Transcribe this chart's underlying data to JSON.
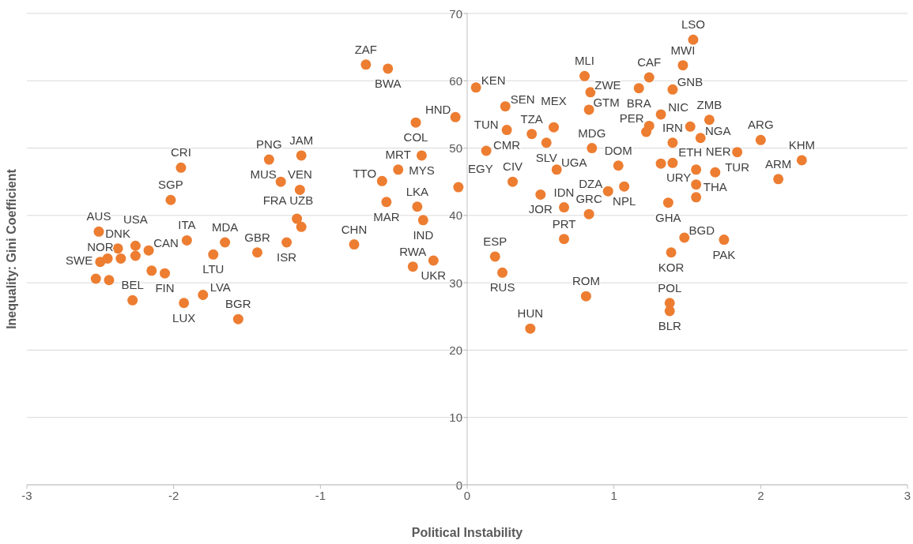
{
  "chart_data": {
    "type": "scatter",
    "xlabel": "Political Instability",
    "ylabel": "Inequality: Gini Coefficient",
    "color": "#ed7d31",
    "marker": "circle",
    "grid": "y",
    "xlim": [
      -3,
      3
    ],
    "xticks": [
      -3,
      -2,
      -1,
      0,
      1,
      2,
      3
    ],
    "ylim": [
      0,
      70
    ],
    "yticks": [
      0,
      10,
      20,
      30,
      40,
      50,
      60,
      70
    ],
    "x": [
      -1.95,
      -2.02,
      -2.51,
      -2.38,
      -2.5,
      -2.45,
      -2.36,
      -2.26,
      -2.26,
      -2.17,
      -1.91,
      -1.65,
      -1.73,
      -1.43,
      -1.23,
      -1.13,
      -1.16,
      -1.14,
      -1.27,
      -1.35,
      -1.13,
      -2.53,
      -2.44,
      -2.15,
      -2.06,
      -2.28,
      -1.93,
      -1.8,
      -1.56,
      -0.69,
      -0.54,
      0.06,
      -0.08,
      -0.35,
      -0.31,
      -0.47,
      -0.58,
      -0.55,
      -0.06,
      -0.34,
      -0.3,
      -0.77,
      -0.23,
      -0.37,
      0.26,
      0.27,
      0.13,
      0.44,
      0.59,
      0.54,
      0.31,
      0.5,
      0.61,
      0.66,
      0.66,
      0.83,
      0.96,
      1.07,
      1.03,
      0.85,
      0.83,
      0.84,
      0.8,
      0.19,
      0.24,
      0.81,
      0.43,
      1.54,
      1.47,
      1.24,
      1.17,
      1.4,
      1.32,
      1.24,
      1.22,
      1.52,
      1.65,
      1.4,
      1.59,
      1.32,
      1.4,
      1.56,
      1.69,
      1.56,
      1.56,
      1.37,
      1.48,
      1.39,
      1.75,
      1.38,
      1.38,
      1.84,
      2.0,
      2.28,
      2.12
    ],
    "values": [
      47.1,
      42.3,
      37.6,
      35.1,
      33.1,
      33.6,
      33.6,
      35.5,
      34.0,
      34.8,
      36.3,
      36.0,
      34.2,
      34.5,
      36.0,
      38.3,
      39.5,
      43.8,
      45.0,
      48.3,
      48.9,
      30.6,
      30.4,
      31.8,
      31.4,
      27.4,
      27.0,
      28.2,
      24.6,
      62.4,
      61.8,
      59.0,
      54.6,
      53.8,
      48.9,
      46.8,
      45.1,
      42.0,
      44.2,
      41.3,
      39.3,
      35.7,
      33.3,
      32.4,
      56.2,
      52.7,
      49.6,
      52.1,
      53.1,
      50.8,
      45.0,
      43.1,
      46.8,
      41.2,
      36.5,
      40.2,
      43.6,
      44.3,
      47.4,
      50.0,
      55.7,
      58.3,
      60.7,
      33.9,
      31.5,
      28.0,
      23.2,
      66.1,
      62.3,
      60.5,
      58.9,
      58.7,
      55.0,
      53.3,
      52.4,
      53.2,
      54.2,
      50.8,
      51.5,
      47.7,
      47.8,
      46.8,
      46.4,
      44.6,
      42.7,
      41.9,
      36.7,
      34.5,
      36.4,
      27.0,
      25.8,
      49.4,
      51.2,
      48.2,
      45.4
    ],
    "annotations": [
      {
        "text": "CRI",
        "x": -1.95,
        "y": 47.1
      },
      {
        "text": "SGP",
        "x": -2.02,
        "y": 42.3
      },
      {
        "text": "AUS",
        "x": -2.51,
        "y": 37.6
      },
      {
        "text": "DNK",
        "x": -2.38,
        "y": 35.1
      },
      {
        "text": "NOR",
        "x": -2.5,
        "y": 33.1
      },
      {
        "text": "SWE",
        "x": -2.45,
        "y": 33.6
      },
      {
        "text": "USA",
        "x": -2.26,
        "y": 35.5
      },
      {
        "text": "CAN",
        "x": -2.17,
        "y": 34.8
      },
      {
        "text": "ITA",
        "x": -1.91,
        "y": 36.3
      },
      {
        "text": "MDA",
        "x": -1.65,
        "y": 36.0
      },
      {
        "text": "LTU",
        "x": -1.73,
        "y": 34.2
      },
      {
        "text": "GBR",
        "x": -1.43,
        "y": 34.5
      },
      {
        "text": "ISR",
        "x": -1.23,
        "y": 36.0
      },
      {
        "text": "UZB",
        "x": -1.13,
        "y": 38.3
      },
      {
        "text": "FRA",
        "x": -1.16,
        "y": 39.5
      },
      {
        "text": "VEN",
        "x": -1.14,
        "y": 43.8
      },
      {
        "text": "MUS",
        "x": -1.27,
        "y": 45.0
      },
      {
        "text": "PNG",
        "x": -1.35,
        "y": 48.3
      },
      {
        "text": "JAM",
        "x": -1.13,
        "y": 48.9
      },
      {
        "text": "FIN",
        "x": -2.06,
        "y": 31.4
      },
      {
        "text": "BEL",
        "x": -2.28,
        "y": 27.4
      },
      {
        "text": "LUX",
        "x": -1.93,
        "y": 27.0
      },
      {
        "text": "LVA",
        "x": -1.8,
        "y": 28.2
      },
      {
        "text": "BGR",
        "x": -1.56,
        "y": 24.6
      },
      {
        "text": "ZAF",
        "x": -0.69,
        "y": 62.4
      },
      {
        "text": "BWA",
        "x": -0.54,
        "y": 61.8
      },
      {
        "text": "KEN",
        "x": 0.06,
        "y": 59.0
      },
      {
        "text": "HND",
        "x": -0.08,
        "y": 54.6
      },
      {
        "text": "COL",
        "x": -0.35,
        "y": 53.8
      },
      {
        "text": "MYS",
        "x": -0.31,
        "y": 48.9
      },
      {
        "text": "MRT",
        "x": -0.47,
        "y": 46.8
      },
      {
        "text": "TTO",
        "x": -0.58,
        "y": 45.1
      },
      {
        "text": "MAR",
        "x": -0.55,
        "y": 42.0
      },
      {
        "text": "EGY",
        "x": -0.06,
        "y": 44.2
      },
      {
        "text": "LKA",
        "x": -0.34,
        "y": 41.3
      },
      {
        "text": "IND",
        "x": -0.3,
        "y": 39.3
      },
      {
        "text": "CHN",
        "x": -0.77,
        "y": 35.7
      },
      {
        "text": "UKR",
        "x": -0.23,
        "y": 33.3
      },
      {
        "text": "RWA",
        "x": -0.37,
        "y": 32.4
      },
      {
        "text": "SEN",
        "x": 0.26,
        "y": 56.2
      },
      {
        "text": "CMR",
        "x": 0.27,
        "y": 52.7
      },
      {
        "text": "TUN",
        "x": 0.13,
        "y": 49.6
      },
      {
        "text": "TZA",
        "x": 0.44,
        "y": 52.1
      },
      {
        "text": "MEX",
        "x": 0.59,
        "y": 53.1
      },
      {
        "text": "SLV",
        "x": 0.54,
        "y": 50.8
      },
      {
        "text": "CIV",
        "x": 0.31,
        "y": 45.0
      },
      {
        "text": "JOR",
        "x": 0.5,
        "y": 43.1
      },
      {
        "text": "UGA",
        "x": 0.61,
        "y": 46.8
      },
      {
        "text": "IDN",
        "x": 0.66,
        "y": 41.2
      },
      {
        "text": "PRT",
        "x": 0.66,
        "y": 36.5
      },
      {
        "text": "GRC",
        "x": 0.83,
        "y": 40.2
      },
      {
        "text": "DZA",
        "x": 0.96,
        "y": 43.6
      },
      {
        "text": "NPL",
        "x": 1.07,
        "y": 44.3
      },
      {
        "text": "DOM",
        "x": 1.03,
        "y": 47.4
      },
      {
        "text": "MDG",
        "x": 0.85,
        "y": 50.0
      },
      {
        "text": "GTM",
        "x": 0.83,
        "y": 55.7
      },
      {
        "text": "ZWE",
        "x": 0.84,
        "y": 58.3
      },
      {
        "text": "MLI",
        "x": 0.8,
        "y": 60.7
      },
      {
        "text": "ESP",
        "x": 0.19,
        "y": 33.9
      },
      {
        "text": "RUS",
        "x": 0.24,
        "y": 31.5
      },
      {
        "text": "ROM",
        "x": 0.81,
        "y": 28.0
      },
      {
        "text": "HUN",
        "x": 0.43,
        "y": 23.2
      },
      {
        "text": "LSO",
        "x": 1.54,
        "y": 66.1
      },
      {
        "text": "MWI",
        "x": 1.47,
        "y": 62.3
      },
      {
        "text": "CAF",
        "x": 1.24,
        "y": 60.5
      },
      {
        "text": "BRA",
        "x": 1.17,
        "y": 58.9
      },
      {
        "text": "GNB",
        "x": 1.4,
        "y": 58.7
      },
      {
        "text": "NIC",
        "x": 1.32,
        "y": 55.0
      },
      {
        "text": "PER",
        "x": 1.24,
        "y": 53.3
      },
      {
        "text": "ETH",
        "x": 1.52,
        "y": 53.2
      },
      {
        "text": "ZMB",
        "x": 1.65,
        "y": 54.2
      },
      {
        "text": "IRN",
        "x": 1.4,
        "y": 50.8
      },
      {
        "text": "NGA",
        "x": 1.59,
        "y": 51.5
      },
      {
        "text": "NER",
        "x": 1.56,
        "y": 46.8
      },
      {
        "text": "THA",
        "x": 1.69,
        "y": 46.4
      },
      {
        "text": "URY",
        "x": 1.56,
        "y": 44.6
      },
      {
        "text": "GHA",
        "x": 1.37,
        "y": 41.9
      },
      {
        "text": "BGD",
        "x": 1.48,
        "y": 36.7
      },
      {
        "text": "KOR",
        "x": 1.39,
        "y": 34.5
      },
      {
        "text": "PAK",
        "x": 1.75,
        "y": 36.4
      },
      {
        "text": "POL",
        "x": 1.38,
        "y": 27.0
      },
      {
        "text": "BLR",
        "x": 1.38,
        "y": 25.8
      },
      {
        "text": "TUR",
        "x": 1.84,
        "y": 49.4
      },
      {
        "text": "ARG",
        "x": 2.0,
        "y": 51.2
      },
      {
        "text": "KHM",
        "x": 2.28,
        "y": 48.2
      },
      {
        "text": "ARM",
        "x": 2.12,
        "y": 45.4
      }
    ]
  }
}
